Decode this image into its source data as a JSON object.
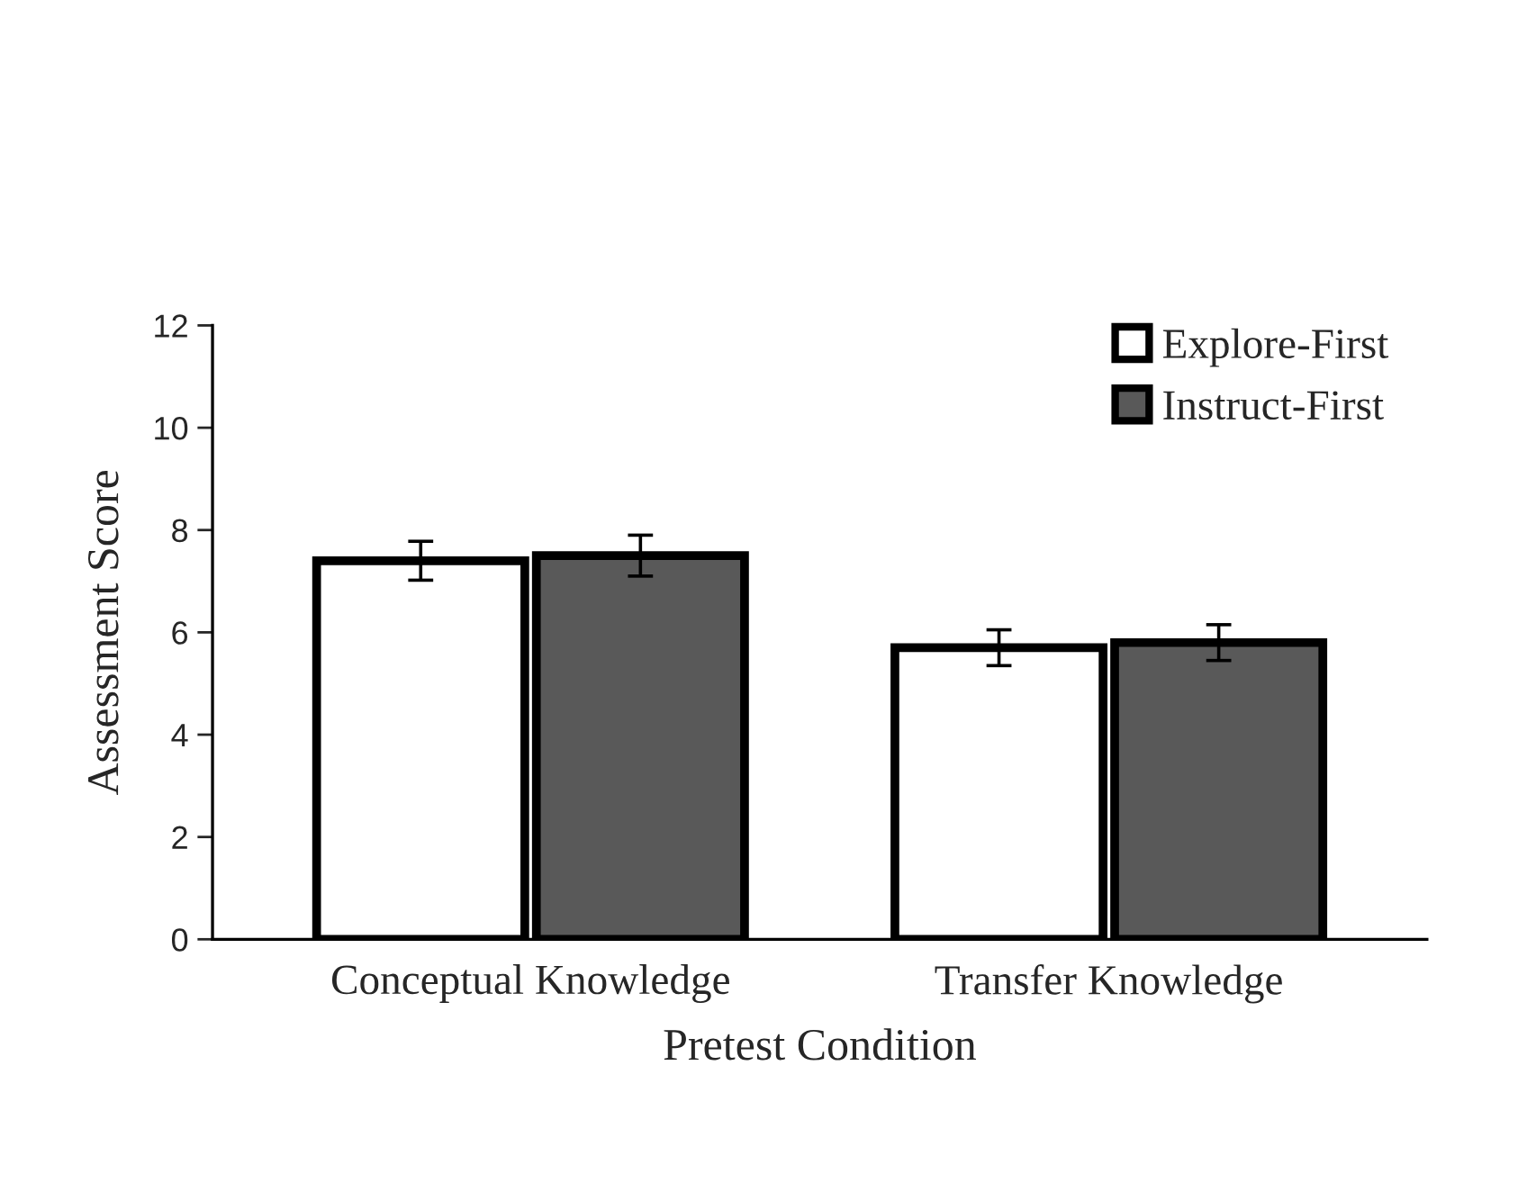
{
  "chart_data": {
    "type": "bar",
    "xlabel": "Pretest Condition",
    "ylabel": "Assessment Score",
    "categories": [
      "Conceptual Knowledge",
      "Transfer Knowledge"
    ],
    "series": [
      {
        "name": "Explore-First",
        "color": "#ffffff",
        "values": [
          7.4,
          5.7
        ],
        "errors": [
          0.38,
          0.35
        ]
      },
      {
        "name": "Instruct-First",
        "color": "#595959",
        "values": [
          7.5,
          5.8
        ],
        "errors": [
          0.4,
          0.35
        ]
      }
    ],
    "ylim": [
      0,
      12
    ],
    "yticks": [
      0,
      2,
      4,
      6,
      8,
      10,
      12
    ],
    "grid": false,
    "legend": "top right"
  }
}
